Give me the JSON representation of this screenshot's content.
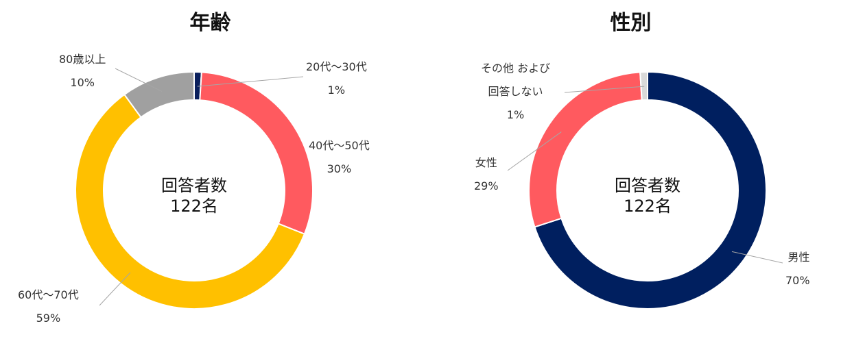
{
  "chart_data": [
    {
      "type": "pie",
      "title": "年齢",
      "center_text": [
        "回答者数",
        "122名"
      ],
      "categories": [
        "20代～30代",
        "40代～50代",
        "60代～70代",
        "80歳以上"
      ],
      "values": [
        1,
        30,
        59,
        10
      ],
      "percent_labels": [
        "1%",
        "30%",
        "59%",
        "10%"
      ],
      "colors": [
        "#0a1f5c",
        "#ff5a5f",
        "#ffc000",
        "#a0a0a0"
      ],
      "legend": "none"
    },
    {
      "type": "pie",
      "title": "性別",
      "center_text": [
        "回答者数",
        "122名"
      ],
      "categories": [
        "男性",
        "女性",
        "その他 および回答しない"
      ],
      "category_lines": [
        [
          "男性"
        ],
        [
          "女性"
        ],
        [
          "その他 および",
          "回答しない"
        ]
      ],
      "values": [
        70,
        29,
        1
      ],
      "percent_labels": [
        "70%",
        "29%",
        "1%"
      ],
      "colors": [
        "#001f5f",
        "#ff5a5f",
        "#d9d9d9"
      ],
      "legend": "none"
    }
  ]
}
